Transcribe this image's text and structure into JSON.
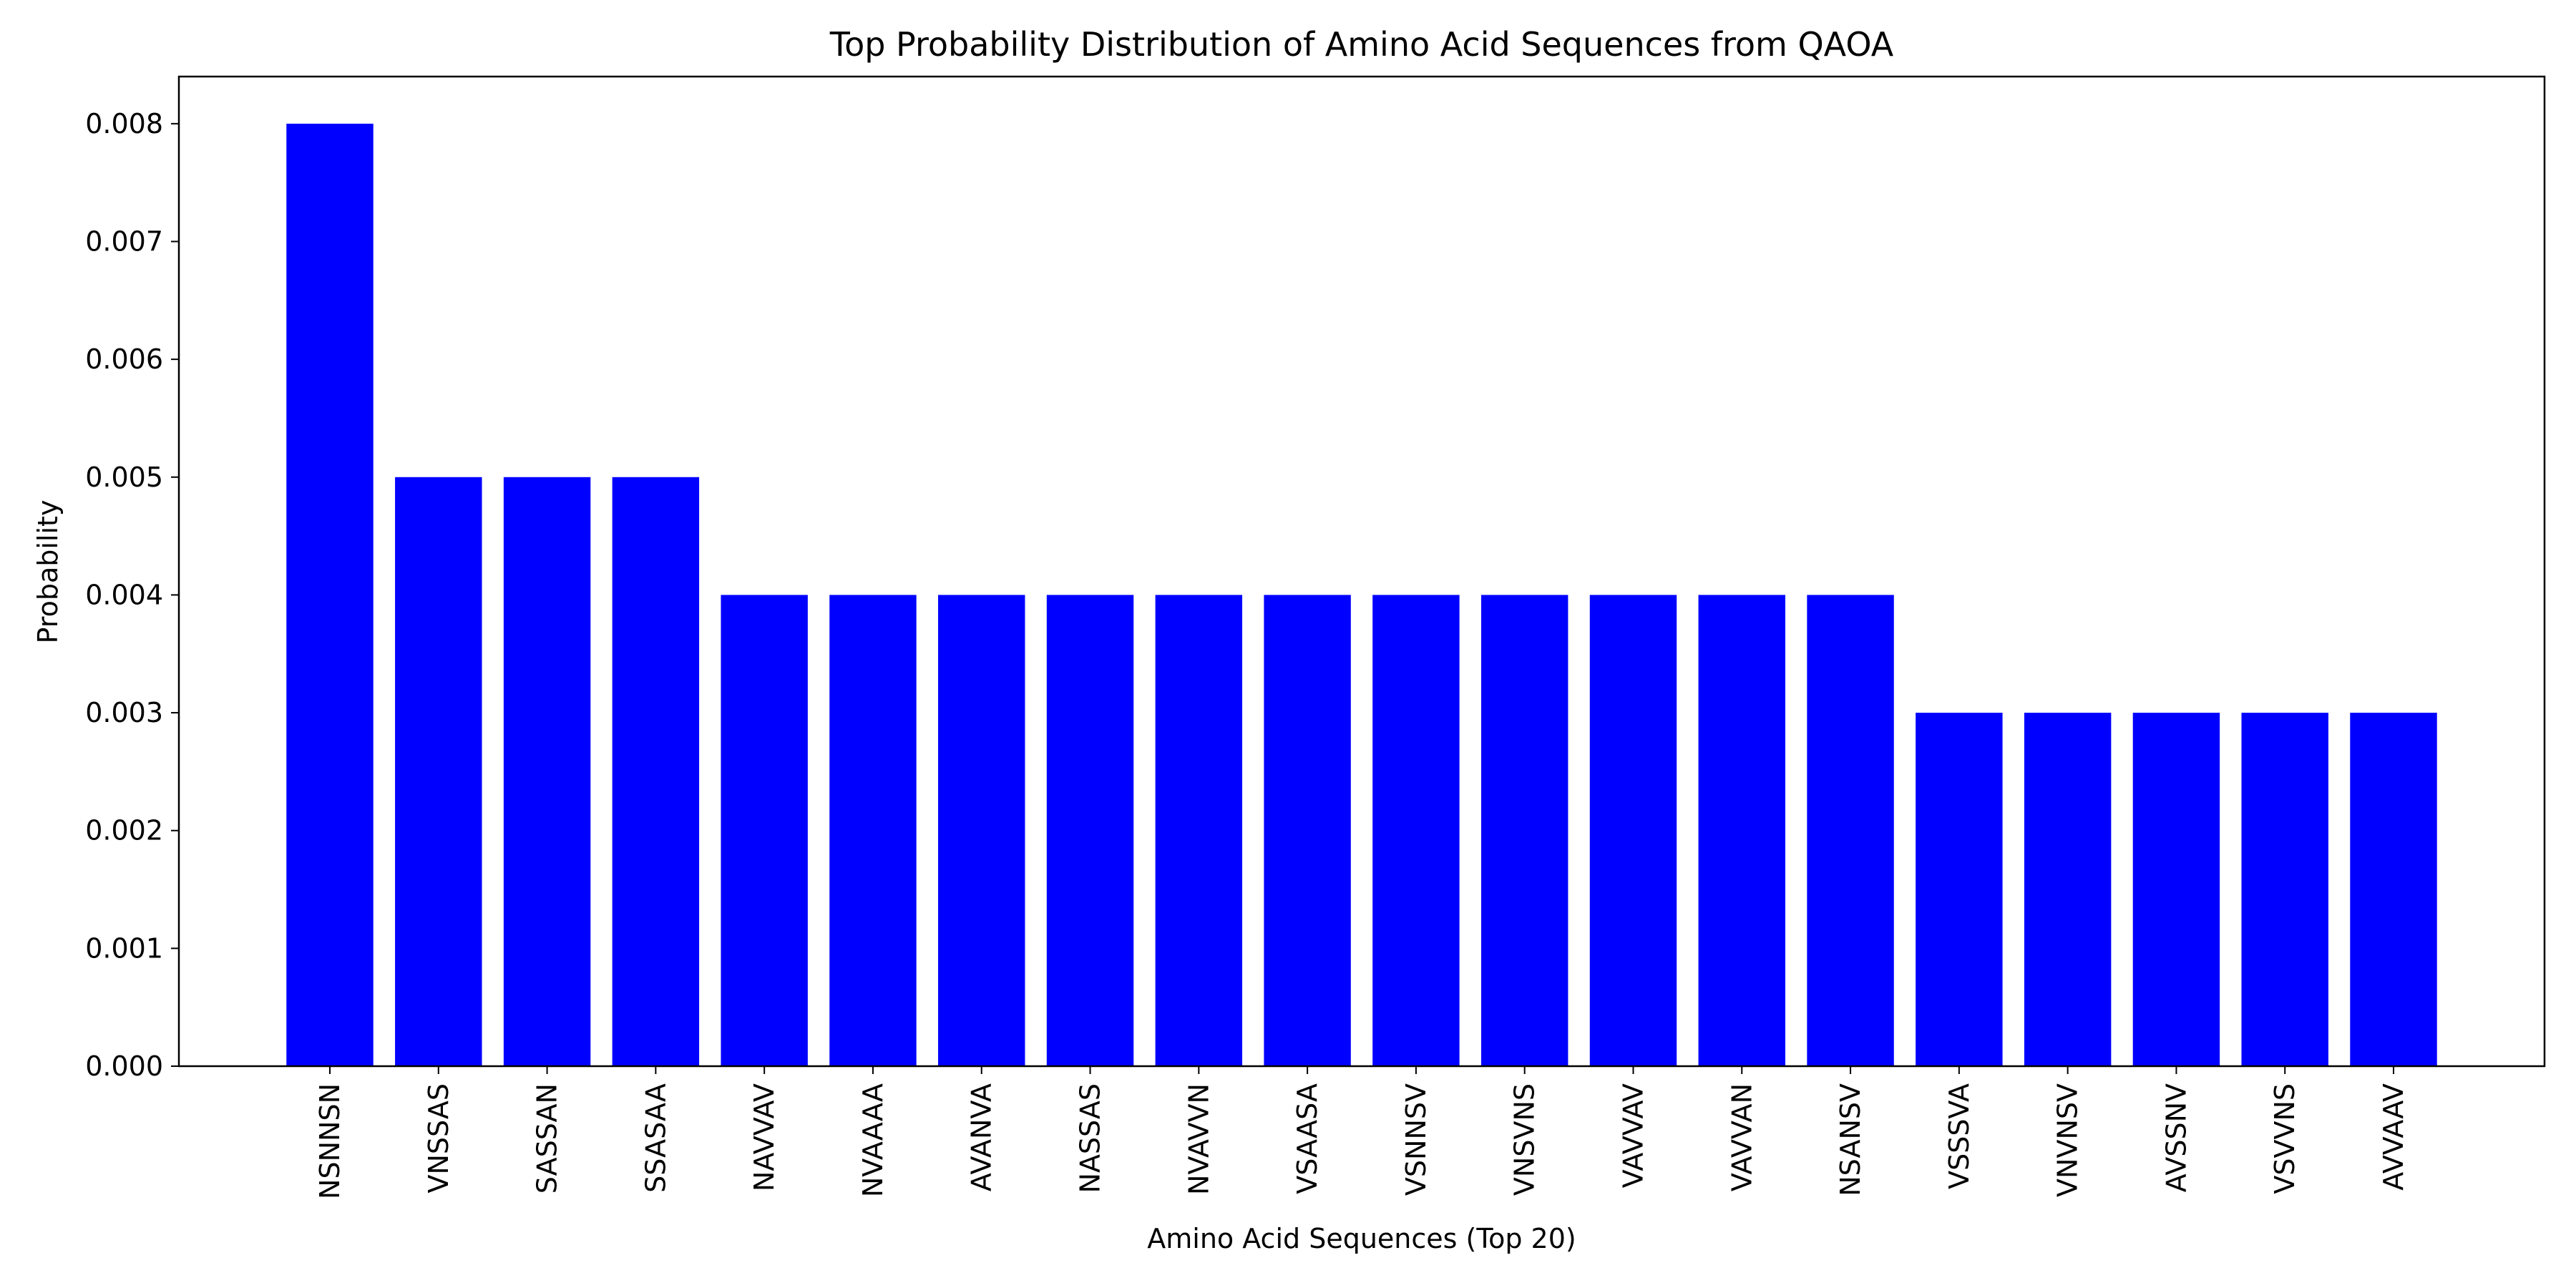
{
  "chart_data": {
    "type": "bar",
    "title": "Top Probability Distribution of Amino Acid Sequences from QAOA",
    "xlabel": "Amino Acid Sequences (Top 20)",
    "ylabel": "Probability",
    "categories": [
      "NSNNSN",
      "VNSSAS",
      "SASSAN",
      "SSASAA",
      "NAVVAV",
      "NVAAAA",
      "AVANVA",
      "NASSAS",
      "NVAVVN",
      "VSAASA",
      "VSNNSV",
      "VNSVNS",
      "VAVVAV",
      "VAVVAN",
      "NSANSV",
      "VSSSVA",
      "VNVNSV",
      "AVSSNV",
      "VSVVNS",
      "AVVAAV"
    ],
    "values": [
      0.008,
      0.005,
      0.005,
      0.005,
      0.004,
      0.004,
      0.004,
      0.004,
      0.004,
      0.004,
      0.004,
      0.004,
      0.004,
      0.004,
      0.004,
      0.003,
      0.003,
      0.003,
      0.003,
      0.003
    ],
    "ylim": [
      0,
      0.0084
    ],
    "yticks": [
      "0.000",
      "0.001",
      "0.002",
      "0.003",
      "0.004",
      "0.005",
      "0.006",
      "0.007",
      "0.008"
    ],
    "bar_color": "#0000ff",
    "grid": false,
    "legend": "none"
  }
}
